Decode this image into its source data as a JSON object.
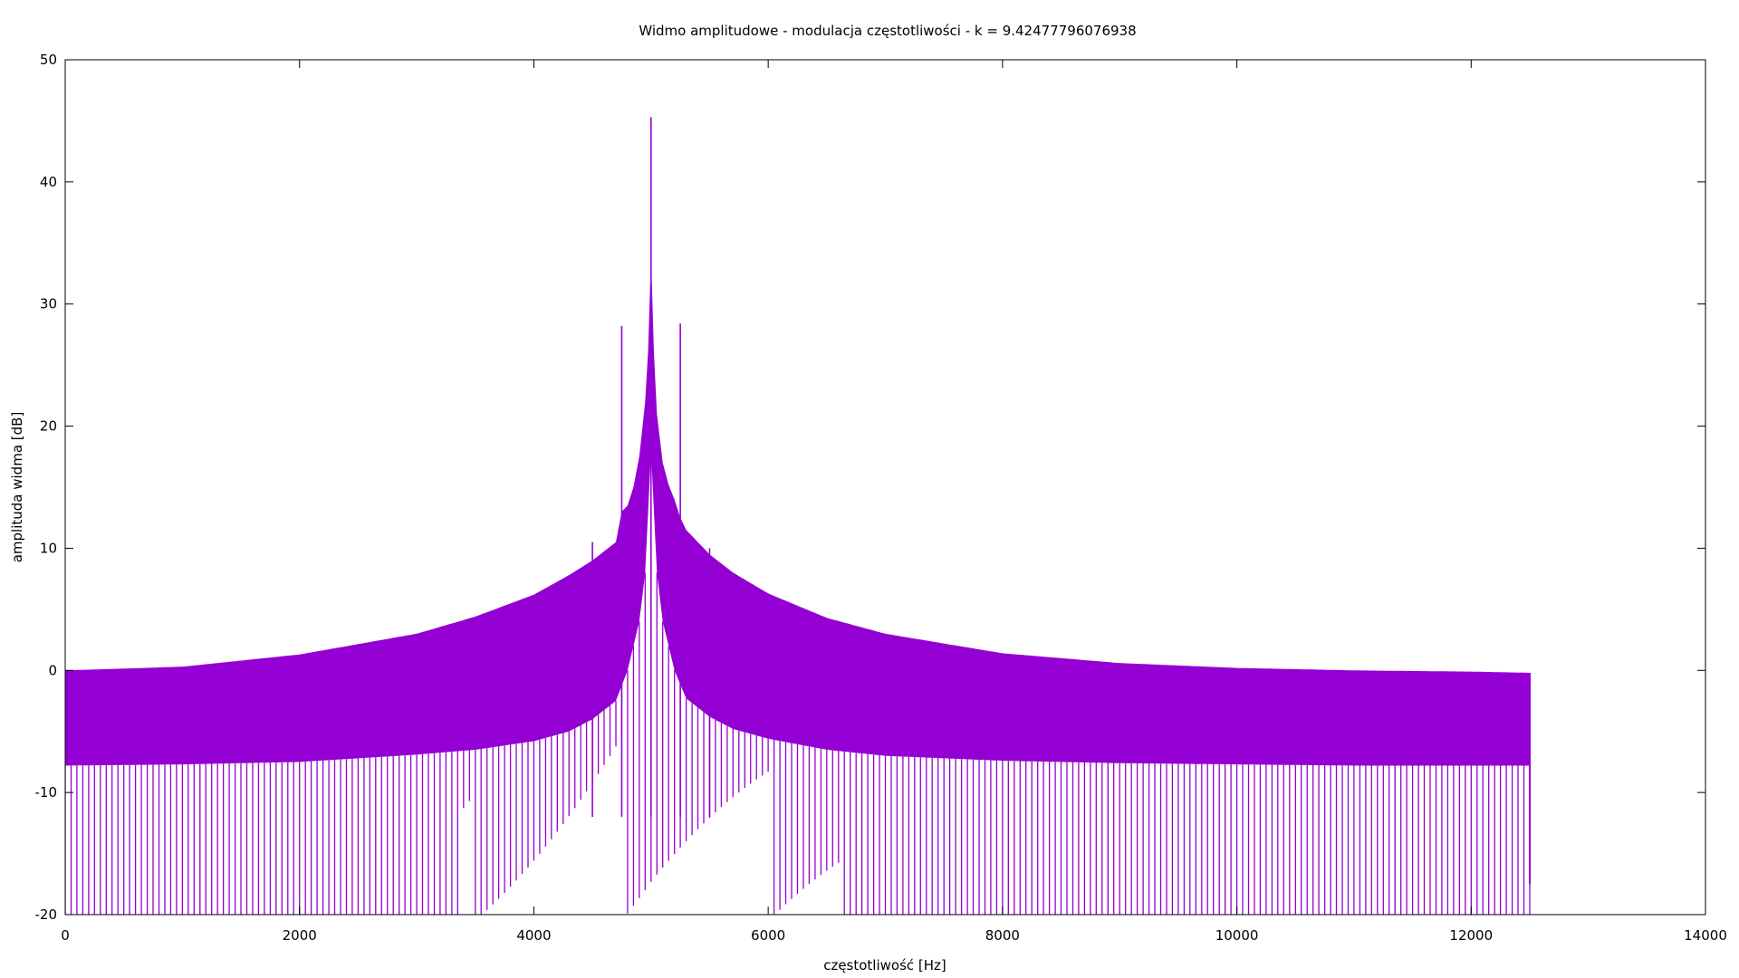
{
  "chart_data": {
    "type": "line",
    "title": "Widmo amplitudowe - modulacja częstotliwości - k = 9.42477796076938",
    "xlabel": "częstotliwość [Hz]",
    "ylabel": "amplituda widma [dB]",
    "xlim": [
      0,
      14000
    ],
    "ylim": [
      -20,
      50
    ],
    "xticks": [
      0,
      2000,
      4000,
      6000,
      8000,
      10000,
      12000,
      14000
    ],
    "yticks": [
      -20,
      -10,
      0,
      10,
      20,
      30,
      40,
      50
    ],
    "xtick_labels": [
      "0",
      "2000",
      "4000",
      "6000",
      "8000",
      "10000",
      "12000",
      "14000"
    ],
    "ytick_labels": [
      "-20",
      "-10",
      "0",
      "10",
      "20",
      "30",
      "40",
      "50"
    ],
    "grid": false,
    "series_color": "#9400D3",
    "series": [
      {
        "x_range": [
          0,
          12500
        ],
        "upper_envelope": {
          "x": [
            0,
            1000,
            2000,
            3000,
            3500,
            4000,
            4300,
            4500,
            4700,
            4750,
            4800,
            4850,
            4900,
            4950,
            4980,
            5000,
            5020,
            5050,
            5100,
            5150,
            5200,
            5250,
            5300,
            5500,
            5700,
            6000,
            6500,
            7000,
            8000,
            9000,
            10000,
            11000,
            12000,
            12500
          ],
          "y": [
            0.0,
            0.3,
            1.3,
            3.0,
            4.4,
            6.2,
            7.8,
            9.0,
            10.5,
            13.0,
            13.5,
            15.0,
            17.5,
            22.0,
            27.0,
            34.0,
            27.0,
            21.0,
            17.0,
            15.2,
            14.0,
            12.5,
            11.5,
            9.5,
            8.0,
            6.3,
            4.3,
            3.0,
            1.4,
            0.6,
            0.2,
            0.0,
            -0.1,
            -0.2
          ]
        },
        "lower_envelope": {
          "x": [
            0,
            1000,
            2000,
            3000,
            3500,
            4000,
            4300,
            4500,
            4700,
            4800,
            4900,
            4950,
            5000,
            5050,
            5100,
            5200,
            5300,
            5500,
            5700,
            6000,
            6500,
            7000,
            8000,
            9000,
            10000,
            11000,
            12000,
            12500
          ],
          "y": [
            -7.8,
            -7.7,
            -7.5,
            -6.9,
            -6.5,
            -5.8,
            -5.0,
            -4.0,
            -2.5,
            0.0,
            4.0,
            8.0,
            18.0,
            8.0,
            4.0,
            0.0,
            -2.3,
            -3.8,
            -4.8,
            -5.6,
            -6.5,
            -7.0,
            -7.4,
            -7.6,
            -7.7,
            -7.8,
            -7.8,
            -7.8
          ]
        },
        "peaks": [
          {
            "x": 5000,
            "y": 45.3
          },
          {
            "x": 4750,
            "y": 28.2
          },
          {
            "x": 5250,
            "y": 28.4
          },
          {
            "x": 4500,
            "y": 10.5
          },
          {
            "x": 5500,
            "y": 10.0
          }
        ]
      }
    ]
  }
}
